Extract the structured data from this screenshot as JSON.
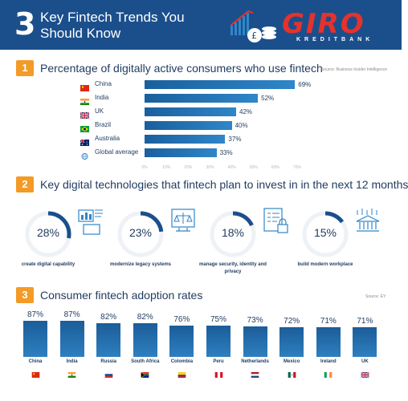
{
  "header": {
    "number": "3",
    "title": "Key Fintech Trends You Should Know",
    "logo": {
      "name": "GIRO",
      "sub": "KREDITBANK"
    }
  },
  "section1": {
    "number": "1",
    "title": "Percentage of digitally active consumers who use fintech",
    "source": "Source: Business Insider Intelligence"
  },
  "section2": {
    "number": "2",
    "title": "Key digital technologies that fintech plan to invest in in the next 12 months",
    "items": [
      {
        "value": 28,
        "label": "28%",
        "caption": "create digital capability",
        "icon": "box-chart-icon"
      },
      {
        "value": 23,
        "label": "23%",
        "caption": "modernize legacy systems",
        "icon": "legacy-scale-icon"
      },
      {
        "value": 18,
        "label": "18%",
        "caption": "manage security, identity and privacy",
        "icon": "security-lock-icon"
      },
      {
        "value": 15,
        "label": "15%",
        "caption": "build modern workplace",
        "icon": "bank-building-icon"
      }
    ]
  },
  "section3": {
    "number": "3",
    "title": "Consumer fintech adoption rates",
    "source": "Source: EY"
  },
  "colors": {
    "header_bg": "#1b4f8c",
    "accent": "#f39a27",
    "bar": "#1a5f9e",
    "logo_red": "#e5322d"
  },
  "chart_data": [
    {
      "type": "bar",
      "orientation": "horizontal",
      "categories": [
        "China",
        "India",
        "UK",
        "Brazil",
        "Australia",
        "Global average"
      ],
      "flags": [
        "china-flag-icon",
        "india-flag-icon",
        "uk-flag-icon",
        "brazil-flag-icon",
        "australia-flag-icon",
        "globe-icon"
      ],
      "values": [
        69,
        52,
        42,
        40,
        37,
        33
      ],
      "value_labels": [
        "69%",
        "52%",
        "42%",
        "40%",
        "37%",
        "33%"
      ],
      "xlim": [
        0,
        70
      ],
      "ticks": [
        "0%",
        "10%",
        "20%",
        "30%",
        "40%",
        "50%",
        "60%",
        "70%"
      ],
      "tick_values": [
        0,
        10,
        20,
        30,
        40,
        50,
        60,
        70
      ]
    },
    {
      "type": "bar",
      "orientation": "vertical",
      "categories": [
        "China",
        "India",
        "Russia",
        "South Africa",
        "Colombia",
        "Peru",
        "Netherlands",
        "Mexico",
        "Ireland",
        "UK"
      ],
      "flags": [
        "china-flag-icon",
        "india-flag-icon",
        "russia-flag-icon",
        "south-africa-flag-icon",
        "colombia-flag-icon",
        "peru-flag-icon",
        "netherlands-flag-icon",
        "mexico-flag-icon",
        "ireland-flag-icon",
        "uk-flag-icon"
      ],
      "values": [
        87,
        87,
        82,
        82,
        76,
        75,
        73,
        72,
        71,
        71
      ],
      "value_labels": [
        "87%",
        "87%",
        "82%",
        "82%",
        "76%",
        "75%",
        "73%",
        "72%",
        "71%",
        "71%"
      ]
    }
  ]
}
